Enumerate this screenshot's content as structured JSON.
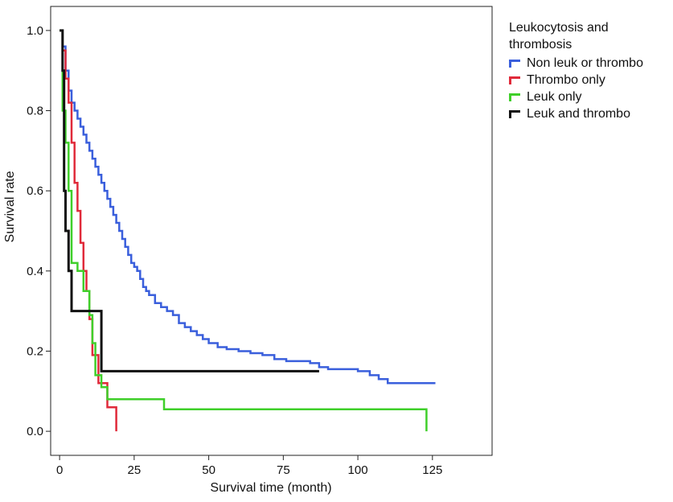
{
  "chart_data": {
    "type": "line",
    "subtype": "step",
    "title": "",
    "xlabel": "Survival time (month)",
    "ylabel": "Survival rate",
    "xlim": [
      -3,
      145
    ],
    "ylim": [
      -0.06,
      1.06
    ],
    "xticks": [
      0,
      25,
      50,
      75,
      100,
      125
    ],
    "yticks": [
      0.0,
      0.2,
      0.4,
      0.6,
      0.8,
      1.0
    ],
    "ytick_labels": [
      "0.0",
      "0.2",
      "0.4",
      "0.6",
      "0.8",
      "1.0"
    ],
    "grid": false,
    "legend": {
      "title": "Leukocytosis and thrombosis",
      "position": "right"
    },
    "series": [
      {
        "name": "Non leuk or thrombo",
        "color": "#3a5fdc",
        "points": [
          [
            0,
            1.0
          ],
          [
            1,
            0.96
          ],
          [
            2,
            0.9
          ],
          [
            3,
            0.85
          ],
          [
            4,
            0.82
          ],
          [
            5,
            0.8
          ],
          [
            6,
            0.78
          ],
          [
            7,
            0.76
          ],
          [
            8,
            0.74
          ],
          [
            9,
            0.72
          ],
          [
            10,
            0.7
          ],
          [
            11,
            0.68
          ],
          [
            12,
            0.66
          ],
          [
            13,
            0.64
          ],
          [
            14,
            0.62
          ],
          [
            15,
            0.6
          ],
          [
            16,
            0.58
          ],
          [
            17,
            0.56
          ],
          [
            18,
            0.54
          ],
          [
            19,
            0.52
          ],
          [
            20,
            0.5
          ],
          [
            21,
            0.48
          ],
          [
            22,
            0.46
          ],
          [
            23,
            0.44
          ],
          [
            24,
            0.42
          ],
          [
            25,
            0.41
          ],
          [
            26,
            0.4
          ],
          [
            27,
            0.38
          ],
          [
            28,
            0.36
          ],
          [
            29,
            0.35
          ],
          [
            30,
            0.34
          ],
          [
            32,
            0.32
          ],
          [
            34,
            0.31
          ],
          [
            36,
            0.3
          ],
          [
            38,
            0.29
          ],
          [
            40,
            0.27
          ],
          [
            42,
            0.26
          ],
          [
            44,
            0.25
          ],
          [
            46,
            0.24
          ],
          [
            48,
            0.23
          ],
          [
            50,
            0.22
          ],
          [
            53,
            0.21
          ],
          [
            56,
            0.205
          ],
          [
            60,
            0.2
          ],
          [
            64,
            0.195
          ],
          [
            68,
            0.19
          ],
          [
            72,
            0.18
          ],
          [
            76,
            0.175
          ],
          [
            80,
            0.175
          ],
          [
            84,
            0.17
          ],
          [
            87,
            0.16
          ],
          [
            90,
            0.155
          ],
          [
            95,
            0.155
          ],
          [
            100,
            0.15
          ],
          [
            104,
            0.14
          ],
          [
            107,
            0.13
          ],
          [
            110,
            0.12
          ],
          [
            120,
            0.12
          ],
          [
            126,
            0.12
          ]
        ]
      },
      {
        "name": "Thrombo only",
        "color": "#e02a3a",
        "points": [
          [
            0,
            1.0
          ],
          [
            1,
            0.95
          ],
          [
            2,
            0.88
          ],
          [
            3,
            0.82
          ],
          [
            4,
            0.72
          ],
          [
            5,
            0.62
          ],
          [
            6,
            0.55
          ],
          [
            7,
            0.47
          ],
          [
            8,
            0.4
          ],
          [
            9,
            0.35
          ],
          [
            10,
            0.28
          ],
          [
            11,
            0.19
          ],
          [
            13,
            0.12
          ],
          [
            16,
            0.06
          ],
          [
            18,
            0.06
          ],
          [
            19,
            0.0
          ]
        ]
      },
      {
        "name": "Leuk only",
        "color": "#3fcf2a",
        "points": [
          [
            0,
            1.0
          ],
          [
            1,
            0.8
          ],
          [
            2,
            0.72
          ],
          [
            3,
            0.6
          ],
          [
            4,
            0.42
          ],
          [
            6,
            0.4
          ],
          [
            8,
            0.35
          ],
          [
            10,
            0.29
          ],
          [
            11,
            0.22
          ],
          [
            12,
            0.14
          ],
          [
            14,
            0.11
          ],
          [
            16,
            0.08
          ],
          [
            35,
            0.055
          ],
          [
            123,
            0.055
          ],
          [
            123,
            0.0
          ]
        ]
      },
      {
        "name": "Leuk and thrombo",
        "color": "#111111",
        "points": [
          [
            0,
            1.0
          ],
          [
            1,
            0.9
          ],
          [
            1.5,
            0.6
          ],
          [
            2,
            0.5
          ],
          [
            3,
            0.4
          ],
          [
            4,
            0.3
          ],
          [
            14,
            0.15
          ],
          [
            87,
            0.15
          ]
        ]
      }
    ]
  }
}
